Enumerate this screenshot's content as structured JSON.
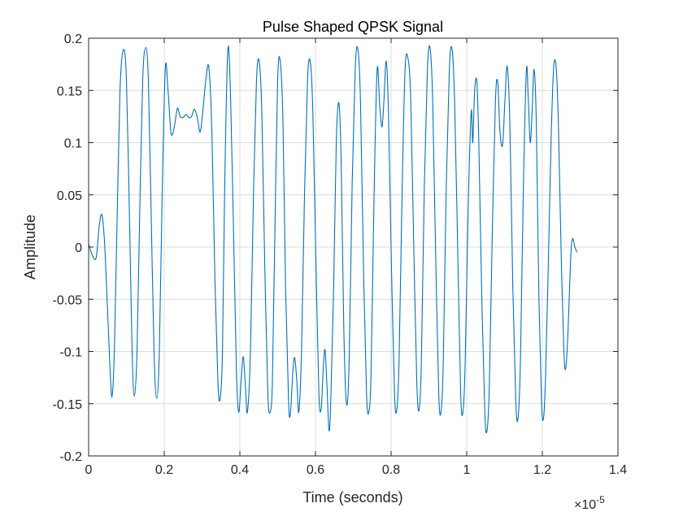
{
  "chart_data": {
    "type": "line",
    "title": "Pulse Shaped QPSK Signal",
    "xlabel": "Time (seconds)",
    "ylabel": "Amplitude",
    "x_exponent_label": "×10",
    "x_exponent_power": "-5",
    "x_scale": 1e-05,
    "xlim": [
      0,
      1.4
    ],
    "ylim": [
      -0.2,
      0.2
    ],
    "grid": true,
    "x_ticks": [
      0,
      0.2,
      0.4,
      0.6,
      0.8,
      1,
      1.2,
      1.4
    ],
    "x_tick_labels": [
      "0",
      "0.2",
      "0.4",
      "0.6",
      "0.8",
      "1",
      "1.2",
      "1.4"
    ],
    "y_ticks": [
      -0.2,
      -0.15,
      -0.1,
      -0.05,
      0,
      0.05,
      0.1,
      0.15,
      0.2
    ],
    "y_tick_labels": [
      "-0.2",
      "-0.15",
      "-0.1",
      "-0.05",
      "0",
      "0.05",
      "0.1",
      "0.15",
      "0.2"
    ],
    "series": [
      {
        "name": "QPSK signal",
        "color": "#0072BD",
        "points": [
          [
            0.0,
            0.003
          ],
          [
            0.01,
            -0.008
          ],
          [
            0.02,
            -0.01
          ],
          [
            0.028,
            0.02
          ],
          [
            0.035,
            0.031
          ],
          [
            0.042,
            0.005
          ],
          [
            0.05,
            -0.06
          ],
          [
            0.057,
            -0.12
          ],
          [
            0.062,
            -0.143
          ],
          [
            0.068,
            -0.1
          ],
          [
            0.075,
            0.02
          ],
          [
            0.083,
            0.15
          ],
          [
            0.092,
            0.189
          ],
          [
            0.1,
            0.16
          ],
          [
            0.108,
            0.03
          ],
          [
            0.115,
            -0.1
          ],
          [
            0.121,
            -0.143
          ],
          [
            0.128,
            -0.1
          ],
          [
            0.135,
            0.03
          ],
          [
            0.143,
            0.16
          ],
          [
            0.151,
            0.191
          ],
          [
            0.158,
            0.16
          ],
          [
            0.165,
            0.04
          ],
          [
            0.173,
            -0.1
          ],
          [
            0.18,
            -0.145
          ],
          [
            0.187,
            -0.1
          ],
          [
            0.195,
            0.06
          ],
          [
            0.203,
            0.172
          ],
          [
            0.21,
            0.15
          ],
          [
            0.217,
            0.112
          ],
          [
            0.222,
            0.108
          ],
          [
            0.228,
            0.118
          ],
          [
            0.235,
            0.133
          ],
          [
            0.242,
            0.125
          ],
          [
            0.25,
            0.124
          ],
          [
            0.258,
            0.127
          ],
          [
            0.265,
            0.124
          ],
          [
            0.272,
            0.125
          ],
          [
            0.28,
            0.132
          ],
          [
            0.288,
            0.123
          ],
          [
            0.295,
            0.11
          ],
          [
            0.302,
            0.13
          ],
          [
            0.31,
            0.16
          ],
          [
            0.318,
            0.172
          ],
          [
            0.326,
            0.11
          ],
          [
            0.334,
            -0.03
          ],
          [
            0.342,
            -0.13
          ],
          [
            0.348,
            -0.145
          ],
          [
            0.354,
            -0.1
          ],
          [
            0.36,
            0.06
          ],
          [
            0.368,
            0.188
          ],
          [
            0.375,
            0.15
          ],
          [
            0.383,
            0.02
          ],
          [
            0.391,
            -0.12
          ],
          [
            0.397,
            -0.158
          ],
          [
            0.403,
            -0.13
          ],
          [
            0.409,
            -0.105
          ],
          [
            0.415,
            -0.135
          ],
          [
            0.42,
            -0.158
          ],
          [
            0.428,
            -0.1
          ],
          [
            0.436,
            0.05
          ],
          [
            0.444,
            0.16
          ],
          [
            0.451,
            0.178
          ],
          [
            0.458,
            0.13
          ],
          [
            0.466,
            -0.02
          ],
          [
            0.474,
            -0.14
          ],
          [
            0.48,
            -0.158
          ],
          [
            0.486,
            -0.13
          ],
          [
            0.492,
            0.0
          ],
          [
            0.5,
            0.16
          ],
          [
            0.507,
            0.177
          ],
          [
            0.514,
            0.12
          ],
          [
            0.521,
            -0.04
          ],
          [
            0.529,
            -0.15
          ],
          [
            0.534,
            -0.158
          ],
          [
            0.54,
            -0.12
          ],
          [
            0.545,
            -0.106
          ],
          [
            0.551,
            -0.13
          ],
          [
            0.556,
            -0.158
          ],
          [
            0.563,
            -0.1
          ],
          [
            0.571,
            0.05
          ],
          [
            0.579,
            0.16
          ],
          [
            0.586,
            0.178
          ],
          [
            0.593,
            0.13
          ],
          [
            0.601,
            -0.01
          ],
          [
            0.609,
            -0.14
          ],
          [
            0.615,
            -0.155
          ],
          [
            0.62,
            -0.12
          ],
          [
            0.625,
            -0.098
          ],
          [
            0.63,
            -0.13
          ],
          [
            0.636,
            -0.176
          ],
          [
            0.641,
            -0.14
          ],
          [
            0.648,
            -0.04
          ],
          [
            0.655,
            0.1
          ],
          [
            0.662,
            0.138
          ],
          [
            0.668,
            0.08
          ],
          [
            0.675,
            -0.08
          ],
          [
            0.682,
            -0.15
          ],
          [
            0.689,
            -0.11
          ],
          [
            0.697,
            0.06
          ],
          [
            0.705,
            0.17
          ],
          [
            0.712,
            0.19
          ],
          [
            0.719,
            0.14
          ],
          [
            0.727,
            -0.02
          ],
          [
            0.735,
            -0.14
          ],
          [
            0.741,
            -0.158
          ],
          [
            0.747,
            -0.12
          ],
          [
            0.755,
            0.05
          ],
          [
            0.763,
            0.17
          ],
          [
            0.77,
            0.135
          ],
          [
            0.776,
            0.115
          ],
          [
            0.781,
            0.14
          ],
          [
            0.787,
            0.178
          ],
          [
            0.793,
            0.13
          ],
          [
            0.801,
            -0.02
          ],
          [
            0.809,
            -0.14
          ],
          [
            0.815,
            -0.156
          ],
          [
            0.821,
            -0.11
          ],
          [
            0.829,
            0.05
          ],
          [
            0.837,
            0.17
          ],
          [
            0.845,
            0.18
          ],
          [
            0.852,
            0.14
          ],
          [
            0.86,
            0.0
          ],
          [
            0.868,
            -0.13
          ],
          [
            0.874,
            -0.156
          ],
          [
            0.88,
            -0.11
          ],
          [
            0.888,
            0.06
          ],
          [
            0.896,
            0.17
          ],
          [
            0.903,
            0.191
          ],
          [
            0.91,
            0.14
          ],
          [
            0.918,
            -0.01
          ],
          [
            0.926,
            -0.14
          ],
          [
            0.932,
            -0.158
          ],
          [
            0.938,
            -0.11
          ],
          [
            0.946,
            0.06
          ],
          [
            0.954,
            0.17
          ],
          [
            0.961,
            0.19
          ],
          [
            0.968,
            0.14
          ],
          [
            0.976,
            0.0
          ],
          [
            0.984,
            -0.14
          ],
          [
            0.99,
            -0.158
          ],
          [
            0.996,
            -0.11
          ],
          [
            1.004,
            0.04
          ],
          [
            1.012,
            0.13
          ],
          [
            1.016,
            0.1
          ],
          [
            1.021,
            0.15
          ],
          [
            1.027,
            0.158
          ],
          [
            1.032,
            0.1
          ],
          [
            1.04,
            -0.05
          ],
          [
            1.048,
            -0.16
          ],
          [
            1.054,
            -0.175
          ],
          [
            1.06,
            -0.13
          ],
          [
            1.068,
            0.02
          ],
          [
            1.076,
            0.14
          ],
          [
            1.082,
            0.158
          ],
          [
            1.088,
            0.11
          ],
          [
            1.095,
            0.098
          ],
          [
            1.101,
            0.14
          ],
          [
            1.107,
            0.173
          ],
          [
            1.114,
            0.12
          ],
          [
            1.122,
            -0.04
          ],
          [
            1.13,
            -0.15
          ],
          [
            1.136,
            -0.163
          ],
          [
            1.142,
            -0.11
          ],
          [
            1.15,
            0.06
          ],
          [
            1.158,
            0.17
          ],
          [
            1.163,
            0.14
          ],
          [
            1.168,
            0.1
          ],
          [
            1.173,
            0.13
          ],
          [
            1.178,
            0.17
          ],
          [
            1.184,
            0.12
          ],
          [
            1.191,
            -0.05
          ],
          [
            1.198,
            -0.15
          ],
          [
            1.203,
            -0.164
          ],
          [
            1.208,
            -0.13
          ],
          [
            1.215,
            -0.03
          ],
          [
            1.223,
            0.1
          ],
          [
            1.23,
            0.172
          ],
          [
            1.237,
            0.17
          ],
          [
            1.243,
            0.11
          ],
          [
            1.25,
            -0.01
          ],
          [
            1.257,
            -0.1
          ],
          [
            1.262,
            -0.116
          ],
          [
            1.268,
            -0.08
          ],
          [
            1.275,
            -0.01
          ],
          [
            1.28,
            0.008
          ],
          [
            1.286,
            0.0
          ],
          [
            1.292,
            -0.005
          ]
        ]
      }
    ]
  }
}
